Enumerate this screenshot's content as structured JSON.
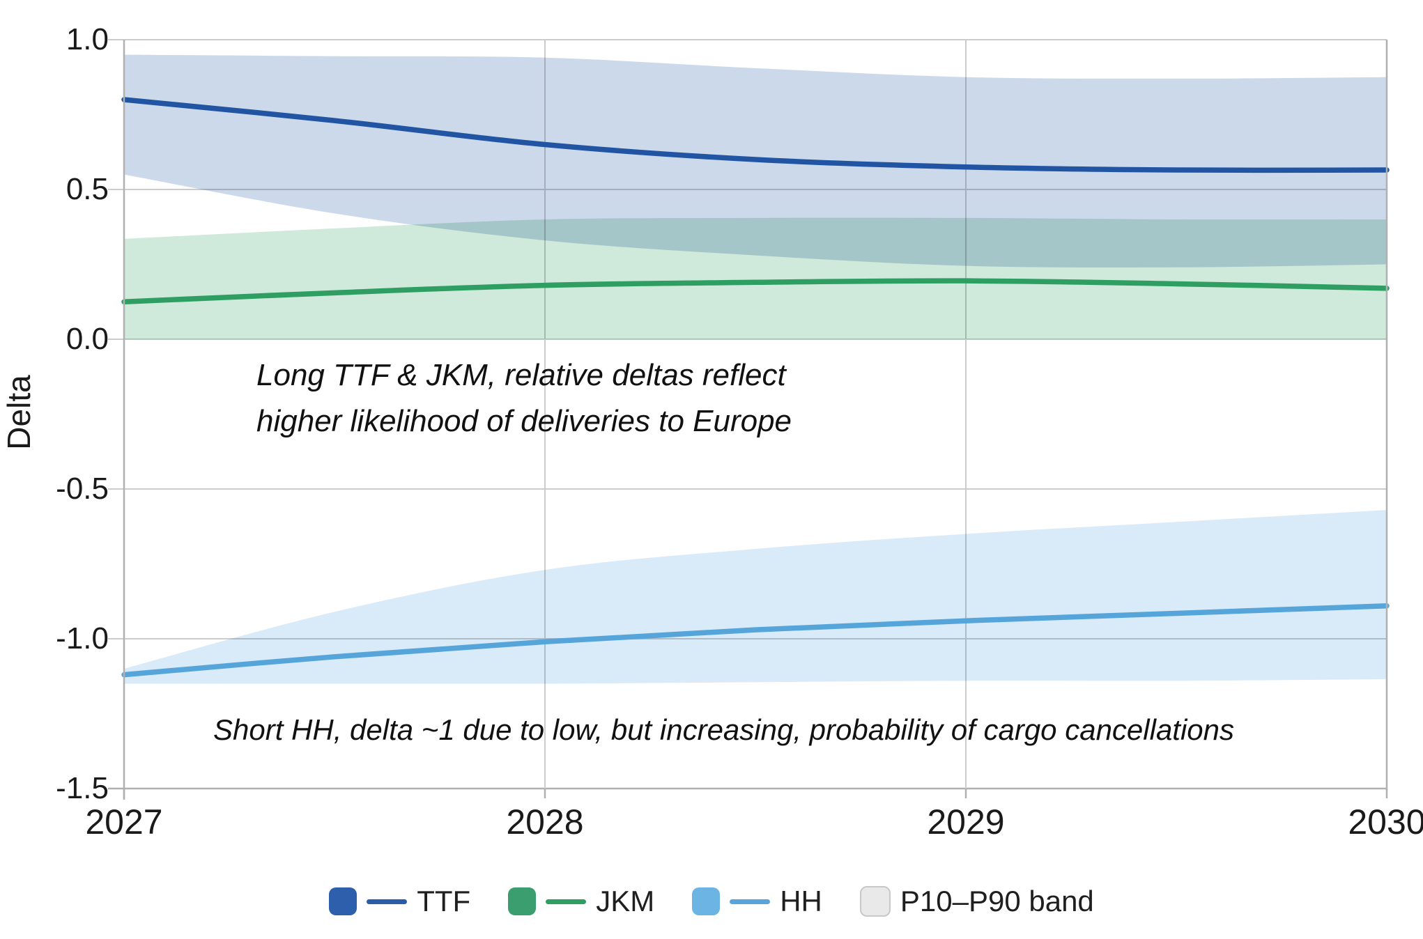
{
  "axes": {
    "ylabel": "Delta",
    "y_ticks": [
      {
        "label": "1.0",
        "value": 1.0
      },
      {
        "label": "0.5",
        "value": 0.5
      },
      {
        "label": "0.0",
        "value": 0.0
      },
      {
        "label": "-0.5",
        "value": -0.5
      },
      {
        "label": "-1.0",
        "value": -1.0
      },
      {
        "label": "-1.5",
        "value": -1.5
      }
    ],
    "x_ticks": [
      {
        "label": "2027",
        "value": 2027
      },
      {
        "label": "2028",
        "value": 2028
      },
      {
        "label": "2029",
        "value": 2029
      },
      {
        "label": "2030",
        "value": 2030
      }
    ]
  },
  "annotations": {
    "long": {
      "line1": "Long TTF & JKM, relative deltas reflect",
      "line2": "higher likelihood of deliveries to Europe"
    },
    "short": {
      "text": "Short HH, delta ~1 due to low, but increasing, probability of cargo cancellations"
    }
  },
  "legend": {
    "items": [
      {
        "label": "TTF",
        "swatch": "#2d5fad",
        "line": "#2b5ca8"
      },
      {
        "label": "JKM",
        "swatch": "#3a9e6e",
        "line": "#2f9e63"
      },
      {
        "label": "HH",
        "swatch": "#6cb4e4",
        "line": "#58a5dc"
      },
      {
        "label": "P10–P90 band",
        "swatch": "#e9e9e9",
        "border": "#c8c8c8",
        "line": null
      }
    ]
  },
  "colors": {
    "grid": "#cccccc",
    "axis": "#b0b0b0",
    "text": "#1a1a1a"
  },
  "chart_data": {
    "type": "line",
    "title": "",
    "xlabel": "",
    "ylabel": "Delta",
    "xlim": [
      2027,
      2030
    ],
    "ylim": [
      -1.5,
      1.0
    ],
    "grid": true,
    "legend_position": "bottom",
    "x": [
      2027,
      2027.5,
      2028,
      2028.5,
      2029,
      2029.5,
      2030
    ],
    "series": [
      {
        "name": "TTF",
        "line_color": "#2155a4",
        "band_color": "#ccd9ea",
        "line": [
          0.8,
          0.73,
          0.65,
          0.6,
          0.575,
          0.565,
          0.565
        ],
        "band_top": [
          0.95,
          0.945,
          0.94,
          0.905,
          0.875,
          0.87,
          0.875
        ],
        "band_bottom": [
          0.55,
          0.42,
          0.33,
          0.28,
          0.245,
          0.24,
          0.25
        ]
      },
      {
        "name": "JKM",
        "line_color": "#2f9e63",
        "band_color": "#cfe9da",
        "line": [
          0.125,
          0.155,
          0.18,
          0.19,
          0.195,
          0.185,
          0.17
        ],
        "band_top": [
          0.335,
          0.37,
          0.4,
          0.405,
          0.405,
          0.4,
          0.4
        ],
        "band_bottom": [
          0.0,
          0.0,
          0.0,
          0.0,
          0.0,
          0.0,
          0.0
        ]
      },
      {
        "name": "HH",
        "line_color": "#55a4da",
        "band_color": "#d9eaf8",
        "line": [
          -1.12,
          -1.06,
          -1.01,
          -0.97,
          -0.94,
          -0.915,
          -0.89
        ],
        "band_top": [
          -1.1,
          -0.91,
          -0.77,
          -0.7,
          -0.65,
          -0.61,
          -0.57
        ],
        "band_bottom": [
          -1.15,
          -1.15,
          -1.15,
          -1.145,
          -1.14,
          -1.14,
          -1.135
        ]
      }
    ],
    "band_label": "P10–P90 band"
  }
}
